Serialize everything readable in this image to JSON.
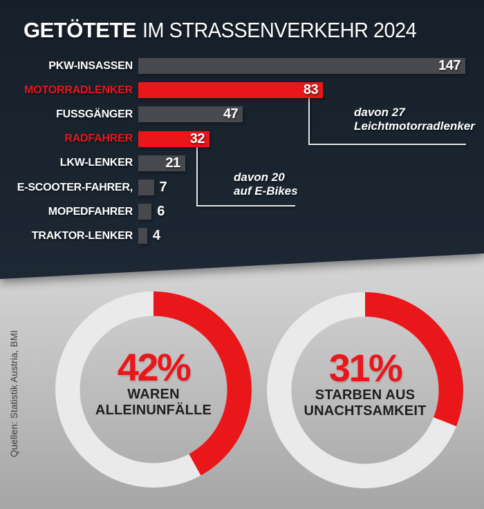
{
  "title": {
    "emphasis": "GETÖTETE",
    "rest": "IM STRASSENVERKEHR 2024"
  },
  "source": "Quellen: Statistik Austria, BMI",
  "colors": {
    "accent_red": "#e9161a",
    "bar_gray": "#47494e",
    "ring_gray": "#eaeaea",
    "dark_background": "#1d2834",
    "light_background": "#c9c9c9",
    "caption_dark": "#1e1e1e",
    "white": "#ffffff"
  },
  "chart_data": [
    {
      "type": "bar",
      "title": "Getötete im Strassenverkehr 2024",
      "orientation": "horizontal",
      "categories": [
        "PKW-INSASSEN",
        "MOTORRADLENKER",
        "FUSSGÄNGER",
        "RADFAHRER",
        "LKW-LENKER",
        "E-SCOOTER-FAHRER,",
        "MOPEDFAHRER",
        "TRAKTOR-LENKER"
      ],
      "values": [
        147,
        83,
        47,
        32,
        21,
        7,
        6,
        4
      ],
      "highlighted_categories": [
        "MOTORRADLENKER",
        "RADFAHRER"
      ],
      "xlim": [
        0,
        147
      ],
      "grid": false,
      "legend": false,
      "annotations": [
        {
          "target": "MOTORRADLENKER",
          "value": 27,
          "lines": [
            "davon 27",
            "Leichtmotorradlenker"
          ]
        },
        {
          "target": "RADFAHRER",
          "value": 20,
          "lines": [
            "davon 20",
            "auf E-Bikes"
          ]
        }
      ]
    },
    {
      "type": "donut",
      "value": 42,
      "percent_label": "42%",
      "lines": [
        "WAREN",
        "ALLEINUNFÄLLE"
      ],
      "start_angle_deg": 0,
      "direction": "clockwise"
    },
    {
      "type": "donut",
      "value": 31,
      "percent_label": "31%",
      "lines": [
        "STARBEN AUS",
        "UNACHTSAMKEIT"
      ],
      "start_angle_deg": 0,
      "direction": "clockwise"
    }
  ]
}
